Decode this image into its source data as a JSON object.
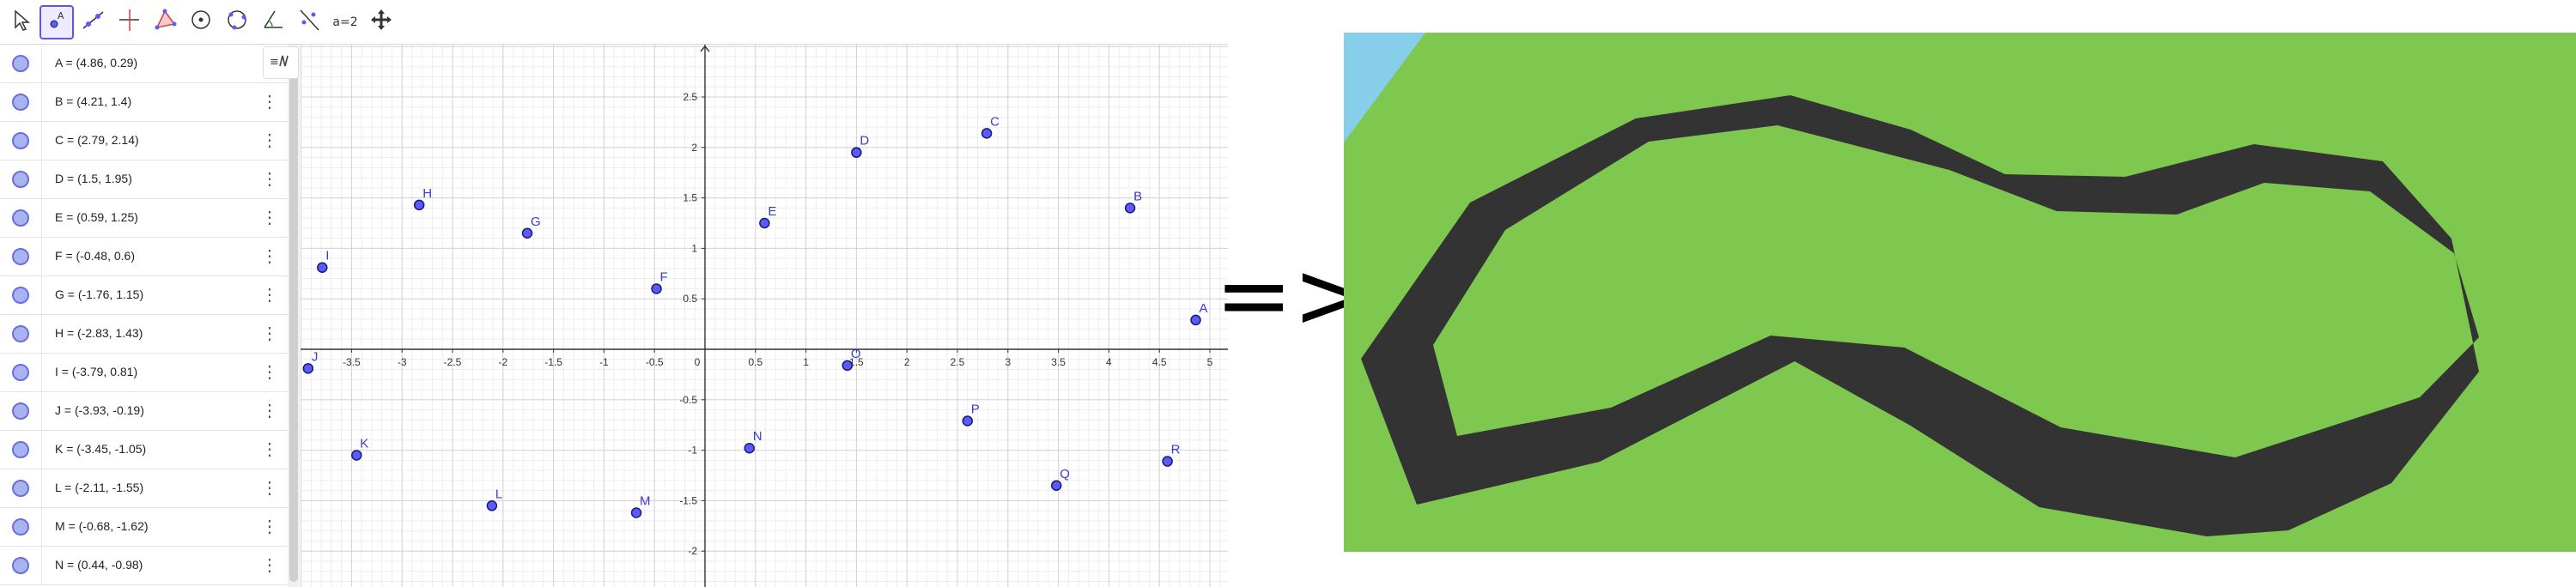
{
  "toolbar": {
    "tools": [
      {
        "name": "move-tool",
        "icon": "cursor-arrow-icon"
      },
      {
        "name": "point-tool",
        "icon": "point-A-icon",
        "active": true
      },
      {
        "name": "line-tool",
        "icon": "line-through-points-icon"
      },
      {
        "name": "perpendicular-tool",
        "icon": "perpendicular-line-icon"
      },
      {
        "name": "polygon-tool",
        "icon": "triangle-polygon-icon"
      },
      {
        "name": "circle-tool",
        "icon": "circle-center-point-icon"
      },
      {
        "name": "circle-3points-tool",
        "icon": "circle-three-points-icon"
      },
      {
        "name": "angle-tool",
        "icon": "angle-icon"
      },
      {
        "name": "reflect-tool",
        "icon": "reflect-line-icon"
      },
      {
        "name": "slider-tool",
        "icon": "slider-icon",
        "label": "a=2"
      },
      {
        "name": "move-graphics-tool",
        "icon": "move-view-icon"
      }
    ]
  },
  "algebra": {
    "style_button_icon": "algebra-style-icon",
    "points": [
      {
        "label": "A = (4.86, 0.29)"
      },
      {
        "label": "B = (4.21, 1.4)"
      },
      {
        "label": "C = (2.79, 2.14)"
      },
      {
        "label": "D = (1.5, 1.95)"
      },
      {
        "label": "E = (0.59, 1.25)"
      },
      {
        "label": "F = (-0.48, 0.6)"
      },
      {
        "label": "G = (-1.76, 1.15)"
      },
      {
        "label": "H = (-2.83, 1.43)"
      },
      {
        "label": "I = (-3.79, 0.81)"
      },
      {
        "label": "J = (-3.93, -0.19)"
      },
      {
        "label": "K = (-3.45, -1.05)"
      },
      {
        "label": "L = (-2.11, -1.55)"
      },
      {
        "label": "M = (-0.68, -1.62)"
      },
      {
        "label": "N = (0.44, -0.98)"
      }
    ]
  },
  "graphics": {
    "x_ticks": [
      "-3.5",
      "-3",
      "-2.5",
      "-2",
      "-1.5",
      "-1",
      "-0.5",
      "0",
      "0.5",
      "1",
      "1.5",
      "2",
      "2.5",
      "3",
      "3.5",
      "4",
      "4.5",
      "5"
    ],
    "y_ticks": [
      "2.5",
      "2",
      "1.5",
      "1",
      "0.5",
      "-0.5",
      "-1",
      "-1.5",
      "-2"
    ],
    "points": [
      {
        "name": "A",
        "x": 4.86,
        "y": 0.29
      },
      {
        "name": "B",
        "x": 4.21,
        "y": 1.4
      },
      {
        "name": "C",
        "x": 2.79,
        "y": 2.14
      },
      {
        "name": "D",
        "x": 1.5,
        "y": 1.95
      },
      {
        "name": "E",
        "x": 0.59,
        "y": 1.25
      },
      {
        "name": "F",
        "x": -0.48,
        "y": 0.6
      },
      {
        "name": "G",
        "x": -1.76,
        "y": 1.15
      },
      {
        "name": "H",
        "x": -2.83,
        "y": 1.43
      },
      {
        "name": "I",
        "x": -3.79,
        "y": 0.81
      },
      {
        "name": "J",
        "x": -3.93,
        "y": -0.19
      },
      {
        "name": "K",
        "x": -3.45,
        "y": -1.05
      },
      {
        "name": "L",
        "x": -2.11,
        "y": -1.55
      },
      {
        "name": "M",
        "x": -0.68,
        "y": -1.62
      },
      {
        "name": "N",
        "x": 0.44,
        "y": -0.98
      },
      {
        "name": "O",
        "x": 1.41,
        "y": -0.16
      },
      {
        "name": "P",
        "x": 2.6,
        "y": -0.71
      },
      {
        "name": "Q",
        "x": 3.48,
        "y": -1.35
      },
      {
        "name": "R",
        "x": 4.58,
        "y": -1.11
      }
    ]
  },
  "arrow": {
    "text": "=>"
  },
  "colors": {
    "point_fill": "#5a5aff",
    "point_stroke": "#1a1a6e",
    "label": "#3b3bd0",
    "grass": "#7ec850",
    "track": "#333333",
    "sky": "#87ceeb"
  }
}
